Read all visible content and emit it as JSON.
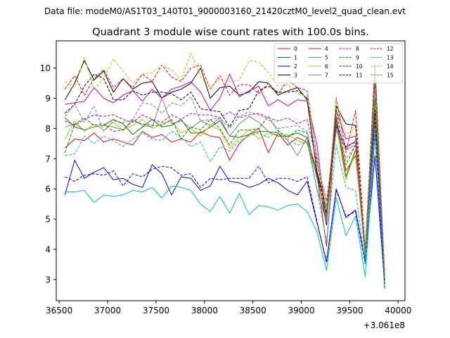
{
  "chart_data": {
    "type": "line",
    "suptitle": "Data file: modeM0/AS1T03_140T01_9000003160_21420cztM0_level2_quad_clean.evt",
    "title": "Quadrant 3 module wise count rates with 100.0s bins.",
    "xlabel": "",
    "ylabel": "",
    "x_offset_label": "+3.061e8",
    "xlim": [
      36470,
      40070
    ],
    "ylim": [
      2.3,
      10.9
    ],
    "x_ticks": [
      36500,
      37000,
      37500,
      38000,
      38500,
      39000,
      39500,
      40000
    ],
    "x_tick_labels": [
      "36500",
      "37000",
      "37500",
      "38000",
      "38500",
      "39000",
      "39500",
      "40000"
    ],
    "y_ticks": [
      3,
      4,
      5,
      6,
      7,
      8,
      9,
      10
    ],
    "y_tick_labels": [
      "3",
      "4",
      "5",
      "6",
      "7",
      "8",
      "9",
      "10"
    ],
    "grid": false,
    "legend_position": "top-right",
    "x": [
      36560,
      36660,
      36760,
      36860,
      36960,
      37060,
      37160,
      37260,
      37360,
      37460,
      37560,
      37660,
      37760,
      37860,
      37960,
      38060,
      38160,
      38260,
      38360,
      38460,
      38560,
      38660,
      38760,
      38860,
      38960,
      39060,
      39160,
      39260,
      39360,
      39460,
      39560,
      39660,
      39760,
      39860
    ],
    "series": [
      {
        "name": "0",
        "color": "#ff0000",
        "style": "solid",
        "values": [
          7.35,
          7.65,
          7.6,
          7.85,
          7.55,
          7.65,
          7.55,
          7.45,
          7.9,
          7.7,
          7.8,
          7.55,
          7.65,
          7.55,
          7.9,
          7.75,
          7.7,
          6.95,
          7.5,
          7.8,
          8.0,
          7.2,
          7.85,
          7.45,
          7.7,
          7.55,
          6.5,
          4.1,
          8.4,
          6.6,
          7.1,
          3.9,
          8.6,
          3.2
        ]
      },
      {
        "name": "1",
        "color": "#008000",
        "style": "solid",
        "values": [
          8.35,
          8.05,
          7.95,
          8.05,
          8.1,
          8.3,
          8.15,
          7.8,
          8.05,
          8.3,
          8.05,
          8.1,
          8.3,
          7.85,
          7.85,
          8.05,
          8.25,
          7.75,
          7.7,
          7.8,
          7.9,
          7.9,
          7.75,
          7.75,
          7.85,
          7.7,
          6.6,
          5.4,
          8.3,
          6.4,
          7.3,
          3.8,
          8.9,
          3.0
        ]
      },
      {
        "name": "2",
        "color": "#0000ff",
        "style": "solid",
        "values": [
          5.8,
          6.95,
          6.35,
          6.55,
          6.7,
          6.3,
          6.35,
          6.15,
          6.05,
          6.8,
          6.5,
          5.8,
          6.4,
          6.35,
          5.95,
          6.1,
          6.75,
          6.25,
          6.2,
          6.05,
          6.15,
          6.35,
          6.2,
          5.95,
          5.8,
          6.25,
          4.9,
          3.6,
          6.0,
          5.05,
          5.3,
          3.6,
          7.1,
          2.8
        ]
      },
      {
        "name": "3",
        "color": "#000000",
        "style": "solid",
        "values": [
          8.95,
          9.5,
          10.25,
          9.6,
          9.9,
          9.2,
          9.65,
          9.3,
          9.5,
          9.55,
          9.0,
          9.2,
          9.3,
          9.5,
          10.0,
          9.0,
          9.35,
          9.4,
          9.1,
          9.2,
          9.55,
          9.5,
          9.1,
          9.25,
          9.35,
          8.95,
          6.6,
          4.8,
          8.75,
          8.15,
          8.1,
          3.9,
          10.1,
          3.1
        ]
      },
      {
        "name": "4",
        "color": "#c000c0",
        "style": "solid",
        "values": [
          8.8,
          8.85,
          8.9,
          9.35,
          9.0,
          8.85,
          9.1,
          9.25,
          8.9,
          9.3,
          9.0,
          9.3,
          9.4,
          9.55,
          9.2,
          8.6,
          9.0,
          9.8,
          9.05,
          9.25,
          9.4,
          8.75,
          8.95,
          8.75,
          8.95,
          8.9,
          7.5,
          4.9,
          8.6,
          7.65,
          7.75,
          3.8,
          9.55,
          3.0
        ]
      },
      {
        "name": "5",
        "color": "#00bfbf",
        "style": "solid",
        "values": [
          5.9,
          5.9,
          5.95,
          5.55,
          5.8,
          5.75,
          5.8,
          5.95,
          5.9,
          6.05,
          5.7,
          6.1,
          6.05,
          5.95,
          5.5,
          5.25,
          5.75,
          5.2,
          5.85,
          5.15,
          5.45,
          5.4,
          5.3,
          5.45,
          5.5,
          5.25,
          4.6,
          3.3,
          5.7,
          4.45,
          5.1,
          3.1,
          7.8,
          2.8
        ]
      },
      {
        "name": "6",
        "color": "#bfbf00",
        "style": "solid",
        "values": [
          7.65,
          8.25,
          7.9,
          8.15,
          7.95,
          8.2,
          7.95,
          8.1,
          8.3,
          8.0,
          8.15,
          8.25,
          7.85,
          8.0,
          7.75,
          8.1,
          7.95,
          7.35,
          7.7,
          7.95,
          7.65,
          7.85,
          7.8,
          7.8,
          7.6,
          7.5,
          6.4,
          5.1,
          8.1,
          6.3,
          7.25,
          3.7,
          8.8,
          3.1
        ]
      },
      {
        "name": "7",
        "color": "#808080",
        "style": "solid",
        "values": [
          8.05,
          8.15,
          7.95,
          8.05,
          8.1,
          8.05,
          7.95,
          8.3,
          8.1,
          8.05,
          9.0,
          8.15,
          8.25,
          8.0,
          8.25,
          8.1,
          8.35,
          7.75,
          8.15,
          8.4,
          8.2,
          7.9,
          7.85,
          7.6,
          7.1,
          7.7,
          6.0,
          4.9,
          8.0,
          7.3,
          7.45,
          3.8,
          8.3,
          3.2
        ]
      },
      {
        "name": "8",
        "color": "#ff0000",
        "style": "dashed",
        "values": [
          9.3,
          9.75,
          9.1,
          9.65,
          9.95,
          9.35,
          9.65,
          9.35,
          9.8,
          9.55,
          10.1,
          9.7,
          9.55,
          10.0,
          10.1,
          9.3,
          9.75,
          9.1,
          9.45,
          9.45,
          9.15,
          9.5,
          9.15,
          9.6,
          9.35,
          9.25,
          7.0,
          5.1,
          9.0,
          7.2,
          8.6,
          4.0,
          9.9,
          3.2
        ]
      },
      {
        "name": "9",
        "color": "#008000",
        "style": "dashed",
        "values": [
          7.2,
          8.15,
          8.35,
          8.1,
          8.15,
          7.9,
          7.95,
          8.25,
          8.15,
          8.1,
          8.1,
          8.3,
          7.65,
          8.05,
          7.95,
          8.3,
          8.0,
          7.45,
          7.95,
          7.95,
          8.0,
          8.4,
          7.9,
          7.7,
          7.95,
          7.85,
          6.4,
          5.1,
          8.65,
          6.8,
          7.45,
          3.7,
          9.0,
          3.0
        ]
      },
      {
        "name": "10",
        "color": "#0000ff",
        "style": "dashed",
        "values": [
          6.4,
          6.25,
          6.45,
          6.5,
          6.45,
          6.6,
          6.1,
          6.5,
          6.4,
          6.65,
          6.75,
          6.7,
          6.45,
          6.5,
          6.05,
          6.35,
          6.3,
          6.35,
          6.35,
          6.35,
          6.75,
          6.2,
          6.35,
          6.35,
          6.25,
          6.4,
          4.95,
          3.55,
          5.95,
          5.1,
          5.25,
          3.5,
          7.9,
          2.7
        ]
      },
      {
        "name": "11",
        "color": "#000000",
        "style": "dashed",
        "values": [
          8.5,
          8.8,
          9.4,
          9.8,
          9.65,
          8.95,
          8.95,
          9.25,
          9.1,
          9.2,
          9.2,
          9.15,
          8.95,
          9.2,
          8.65,
          8.6,
          8.55,
          8.05,
          8.6,
          8.65,
          9.25,
          9.4,
          9.2,
          9.2,
          9.25,
          9.0,
          6.6,
          5.2,
          8.1,
          7.4,
          7.55,
          4.0,
          8.6,
          2.9
        ]
      },
      {
        "name": "12",
        "color": "#c000c0",
        "style": "dashed",
        "values": [
          8.25,
          8.1,
          8.3,
          8.45,
          8.4,
          8.45,
          8.3,
          8.2,
          8.45,
          8.3,
          8.2,
          8.45,
          8.3,
          8.5,
          8.45,
          8.45,
          8.35,
          8.55,
          8.35,
          8.45,
          8.5,
          8.35,
          8.25,
          8.35,
          8.15,
          8.3,
          6.9,
          5.6,
          8.15,
          7.35,
          7.6,
          4.0,
          8.2,
          3.2
        ]
      },
      {
        "name": "13",
        "color": "#00bfbf",
        "style": "dashed",
        "values": [
          7.1,
          7.15,
          7.75,
          7.5,
          7.75,
          7.6,
          7.4,
          7.65,
          7.85,
          7.65,
          7.6,
          7.9,
          7.7,
          7.4,
          7.55,
          6.9,
          7.4,
          7.25,
          7.6,
          7.75,
          7.85,
          7.7,
          7.95,
          7.65,
          7.45,
          7.55,
          6.0,
          4.25,
          7.45,
          6.05,
          5.95,
          3.5,
          8.0,
          2.9
        ]
      },
      {
        "name": "14",
        "color": "#bfbf00",
        "style": "dashed",
        "values": [
          9.55,
          9.35,
          10.35,
          9.3,
          9.65,
          10.3,
          9.9,
          9.5,
          9.8,
          9.85,
          10.1,
          9.95,
          9.6,
          10.5,
          9.7,
          9.35,
          9.65,
          9.55,
          9.6,
          10.25,
          10.2,
          9.85,
          9.4,
          9.45,
          9.15,
          9.05,
          7.15,
          5.3,
          8.9,
          7.8,
          8.0,
          4.1,
          9.85,
          3.1
        ]
      },
      {
        "name": "15",
        "color": "#808080",
        "style": "dashed",
        "values": [
          8.4,
          8.8,
          8.2,
          8.75,
          7.9,
          8.25,
          8.2,
          8.3,
          8.85,
          8.8,
          8.5,
          8.85,
          8.75,
          9.05,
          8.25,
          8.3,
          8.35,
          8.0,
          8.4,
          8.55,
          8.45,
          8.3,
          8.0,
          8.05,
          8.1,
          7.9,
          6.35,
          5.1,
          7.95,
          7.0,
          7.45,
          3.8,
          9.3,
          3.1
        ]
      }
    ]
  }
}
